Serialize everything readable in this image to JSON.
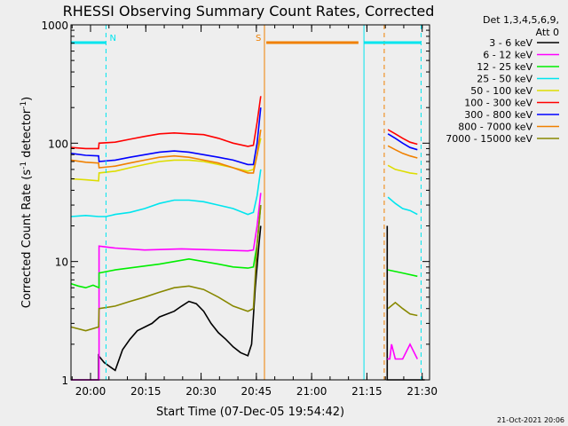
{
  "chart_data": {
    "type": "line",
    "title": "RHESSI Observing Summary Count Rates, Corrected",
    "xlabel": "Start Time (07-Dec-05 19:54:42)",
    "ylabel_main": "Corrected Count Rate (s",
    "ylabel_sup1": "-1",
    "ylabel_mid": " detector",
    "ylabel_sup2": "-1",
    "ylabel_end": ")",
    "y_scale": "log",
    "ylim": [
      1,
      1000
    ],
    "xlim": [
      "19:54:42",
      "21:32:00"
    ],
    "x_ticks": [
      "20:00",
      "20:15",
      "20:30",
      "20:45",
      "21:00",
      "21:15",
      "21:30"
    ],
    "x_tick_minutes": [
      5.3,
      20.3,
      35.3,
      50.3,
      65.3,
      80.3,
      95.3
    ],
    "y_ticks": [
      "1",
      "10",
      "100",
      "1000"
    ],
    "y_tick_values": [
      1,
      10,
      100,
      1000
    ],
    "legend_header": [
      "Det 1,3,4,5,6,9,",
      "Att 0"
    ],
    "legend_placement": "right",
    "flags": [
      {
        "label": "N",
        "color": "#00e5ee",
        "start_min": 0,
        "end_min": 9.5
      },
      {
        "label": "S",
        "color": "#f08000",
        "start_min": 53,
        "end_min": 78
      },
      {
        "label": "",
        "color": "#00e5ee",
        "start_min": 79.5,
        "end_min": 95
      }
    ],
    "vlines": [
      {
        "min": 9.5,
        "color": "#00e5ee",
        "style": "dashed"
      },
      {
        "min": 52.5,
        "color": "#f08000",
        "style": "solid"
      },
      {
        "min": 79.5,
        "color": "#00e5ee",
        "style": "solid"
      },
      {
        "min": 85.0,
        "color": "#f08000",
        "style": "dashed"
      },
      {
        "min": 95.0,
        "color": "#00e5ee",
        "style": "dashed"
      }
    ],
    "series": [
      {
        "name": "3 - 6 keV",
        "color": "#000000",
        "points": [
          [
            0,
            1
          ],
          [
            5,
            1
          ],
          [
            7.5,
            1
          ],
          [
            7.5,
            1.6
          ],
          [
            9,
            1.4
          ],
          [
            12,
            1.2
          ],
          [
            14,
            1.8
          ],
          [
            16,
            2.2
          ],
          [
            18,
            2.6
          ],
          [
            22,
            3.0
          ],
          [
            24,
            3.4
          ],
          [
            28,
            3.8
          ],
          [
            30,
            4.2
          ],
          [
            32,
            4.6
          ],
          [
            34,
            4.4
          ],
          [
            36,
            3.8
          ],
          [
            38,
            3.0
          ],
          [
            40,
            2.5
          ],
          [
            42,
            2.2
          ],
          [
            44,
            1.9
          ],
          [
            46,
            1.7
          ],
          [
            48,
            1.6
          ],
          [
            49,
            2.0
          ],
          [
            50,
            6.0
          ],
          [
            51,
            14
          ],
          [
            51.5,
            20
          ],
          [
            52,
            20
          ],
          [
            85,
            20
          ],
          [
            85.8,
            20
          ],
          [
            85.8,
            1
          ],
          [
            96,
            1
          ]
        ],
        "gap": [
          51.8,
          85.7
        ]
      },
      {
        "name": "6 - 12 keV",
        "color": "#ff00ff",
        "points": [
          [
            0,
            1
          ],
          [
            7,
            1
          ],
          [
            7.6,
            1
          ],
          [
            7.6,
            13.5
          ],
          [
            12,
            13
          ],
          [
            20,
            12.5
          ],
          [
            30,
            12.8
          ],
          [
            40,
            12.5
          ],
          [
            48,
            12.3
          ],
          [
            49.5,
            12.5
          ],
          [
            50.5,
            20
          ],
          [
            51.5,
            38
          ],
          [
            85.8,
            1.5
          ],
          [
            86.5,
            1.5
          ],
          [
            87,
            2
          ],
          [
            88,
            1.5
          ],
          [
            90,
            1.5
          ],
          [
            92,
            2
          ],
          [
            94,
            1.5
          ]
        ],
        "gap": [
          51.8,
          85.7
        ]
      },
      {
        "name": "12 - 25 keV",
        "color": "#00ee00",
        "points": [
          [
            0,
            6.5
          ],
          [
            2,
            6.2
          ],
          [
            4,
            6.0
          ],
          [
            6,
            6.3
          ],
          [
            7.6,
            6.0
          ],
          [
            7.6,
            8.0
          ],
          [
            12,
            8.5
          ],
          [
            18,
            9.0
          ],
          [
            24,
            9.5
          ],
          [
            28,
            10
          ],
          [
            32,
            10.5
          ],
          [
            36,
            10.0
          ],
          [
            40,
            9.5
          ],
          [
            44,
            9.0
          ],
          [
            48,
            8.8
          ],
          [
            49.5,
            9.0
          ],
          [
            50.5,
            14
          ],
          [
            51.5,
            30
          ],
          [
            86,
            8.5
          ],
          [
            90,
            8.0
          ],
          [
            94,
            7.5
          ]
        ],
        "gap": [
          51.8,
          85.7
        ]
      },
      {
        "name": "25 - 50 keV",
        "color": "#00e5ee",
        "points": [
          [
            0,
            24
          ],
          [
            4,
            24.5
          ],
          [
            7.5,
            24
          ],
          [
            9.5,
            24
          ],
          [
            12,
            25
          ],
          [
            16,
            26
          ],
          [
            20,
            28
          ],
          [
            24,
            31
          ],
          [
            28,
            33
          ],
          [
            32,
            33
          ],
          [
            36,
            32
          ],
          [
            40,
            30
          ],
          [
            44,
            28
          ],
          [
            48,
            25
          ],
          [
            49.5,
            26
          ],
          [
            50.5,
            36
          ],
          [
            51.5,
            60
          ],
          [
            86,
            35
          ],
          [
            88,
            31
          ],
          [
            90,
            28
          ],
          [
            92,
            27
          ],
          [
            94,
            25
          ]
        ],
        "gap": [
          51.8,
          85.7
        ]
      },
      {
        "name": "50 - 100 keV",
        "color": "#dddd00",
        "points": [
          [
            0,
            50
          ],
          [
            4,
            49
          ],
          [
            7.5,
            48
          ],
          [
            7.6,
            56
          ],
          [
            12,
            58
          ],
          [
            16,
            62
          ],
          [
            20,
            66
          ],
          [
            24,
            70
          ],
          [
            28,
            72
          ],
          [
            32,
            72
          ],
          [
            36,
            70
          ],
          [
            40,
            66
          ],
          [
            44,
            62
          ],
          [
            48,
            58
          ],
          [
            49.5,
            60
          ],
          [
            50.5,
            80
          ],
          [
            51.5,
            110
          ],
          [
            86,
            65
          ],
          [
            88,
            60
          ],
          [
            90,
            58
          ],
          [
            92,
            56
          ],
          [
            94,
            55
          ]
        ],
        "gap": [
          51.8,
          85.7
        ]
      },
      {
        "name": "100 - 300 keV",
        "color": "#ff0000",
        "points": [
          [
            0,
            92
          ],
          [
            4,
            90
          ],
          [
            7.5,
            90
          ],
          [
            7.6,
            100
          ],
          [
            12,
            102
          ],
          [
            16,
            108
          ],
          [
            20,
            114
          ],
          [
            24,
            120
          ],
          [
            28,
            122
          ],
          [
            32,
            120
          ],
          [
            36,
            118
          ],
          [
            40,
            110
          ],
          [
            44,
            100
          ],
          [
            48,
            94
          ],
          [
            49.5,
            96
          ],
          [
            50.5,
            150
          ],
          [
            51.5,
            250
          ],
          [
            86,
            130
          ],
          [
            88,
            120
          ],
          [
            90,
            110
          ],
          [
            92,
            102
          ],
          [
            94,
            98
          ]
        ],
        "gap": [
          51.8,
          85.7
        ]
      },
      {
        "name": "300 - 800 keV",
        "color": "#0000ff",
        "points": [
          [
            0,
            82
          ],
          [
            4,
            79
          ],
          [
            7.5,
            78
          ],
          [
            7.6,
            70
          ],
          [
            12,
            72
          ],
          [
            16,
            76
          ],
          [
            20,
            80
          ],
          [
            24,
            84
          ],
          [
            28,
            86
          ],
          [
            32,
            84
          ],
          [
            36,
            80
          ],
          [
            40,
            76
          ],
          [
            44,
            72
          ],
          [
            48,
            66
          ],
          [
            49.5,
            66
          ],
          [
            50.5,
            100
          ],
          [
            51.5,
            200
          ],
          [
            86,
            120
          ],
          [
            88,
            110
          ],
          [
            90,
            100
          ],
          [
            92,
            92
          ],
          [
            94,
            88
          ]
        ],
        "gap": [
          51.8,
          85.7
        ]
      },
      {
        "name": "800 - 7000 keV",
        "color": "#f08000",
        "points": [
          [
            0,
            72
          ],
          [
            4,
            69
          ],
          [
            7.5,
            68
          ],
          [
            7.6,
            62
          ],
          [
            12,
            64
          ],
          [
            16,
            68
          ],
          [
            20,
            72
          ],
          [
            24,
            76
          ],
          [
            28,
            78
          ],
          [
            32,
            76
          ],
          [
            36,
            72
          ],
          [
            40,
            68
          ],
          [
            44,
            62
          ],
          [
            48,
            56
          ],
          [
            49.5,
            56
          ],
          [
            50.5,
            80
          ],
          [
            51.5,
            130
          ],
          [
            86,
            95
          ],
          [
            88,
            88
          ],
          [
            90,
            82
          ],
          [
            92,
            78
          ],
          [
            94,
            75
          ]
        ],
        "gap": [
          51.8,
          85.7
        ]
      },
      {
        "name": "7000 - 15000 keV",
        "color": "#888800",
        "points": [
          [
            0,
            2.8
          ],
          [
            4,
            2.6
          ],
          [
            7.5,
            2.8
          ],
          [
            7.6,
            4.0
          ],
          [
            12,
            4.2
          ],
          [
            16,
            4.6
          ],
          [
            20,
            5.0
          ],
          [
            24,
            5.5
          ],
          [
            28,
            6.0
          ],
          [
            32,
            6.2
          ],
          [
            36,
            5.8
          ],
          [
            40,
            5.0
          ],
          [
            44,
            4.2
          ],
          [
            48,
            3.8
          ],
          [
            49.5,
            4.0
          ],
          [
            50.5,
            14
          ],
          [
            51.5,
            30
          ],
          [
            86,
            4.0
          ],
          [
            88,
            4.5
          ],
          [
            90,
            4.0
          ],
          [
            92,
            3.6
          ],
          [
            94,
            3.5
          ]
        ],
        "gap": [
          51.8,
          85.7
        ]
      }
    ],
    "footer_timestamp": "21-Oct-2021 20:06"
  }
}
